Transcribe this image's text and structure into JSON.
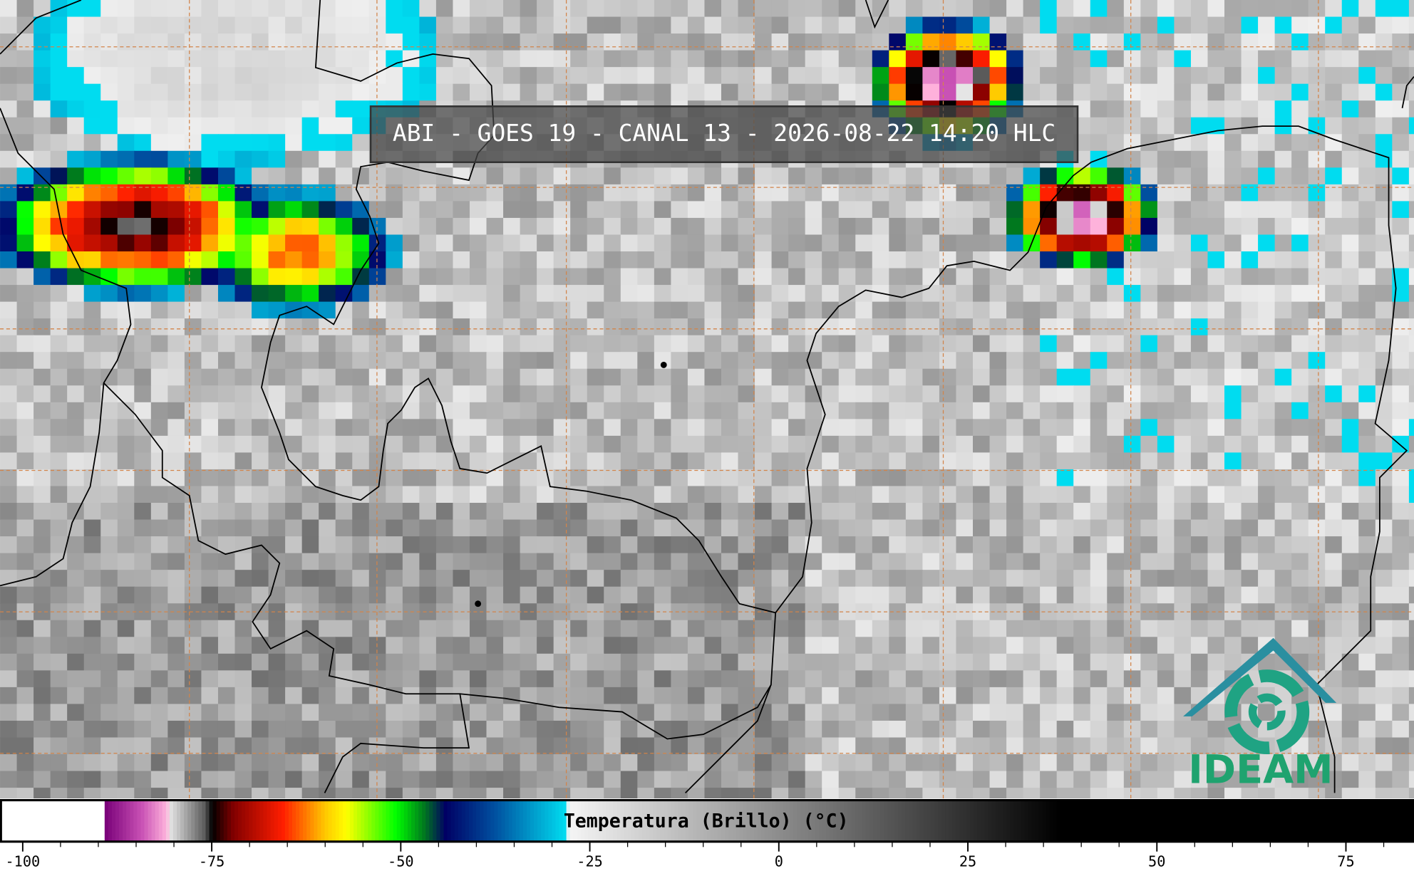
{
  "title": "ABI - GOES 19 - CANAL 13 - 2026-08-22 14:20 HLC",
  "colorbar": {
    "label": "Temperatura (Brillo) (°C)",
    "range": [
      -103,
      84
    ],
    "ticks": [
      -100,
      -75,
      -50,
      -25,
      0,
      25,
      50,
      75
    ]
  },
  "logo": "IDEAM"
}
